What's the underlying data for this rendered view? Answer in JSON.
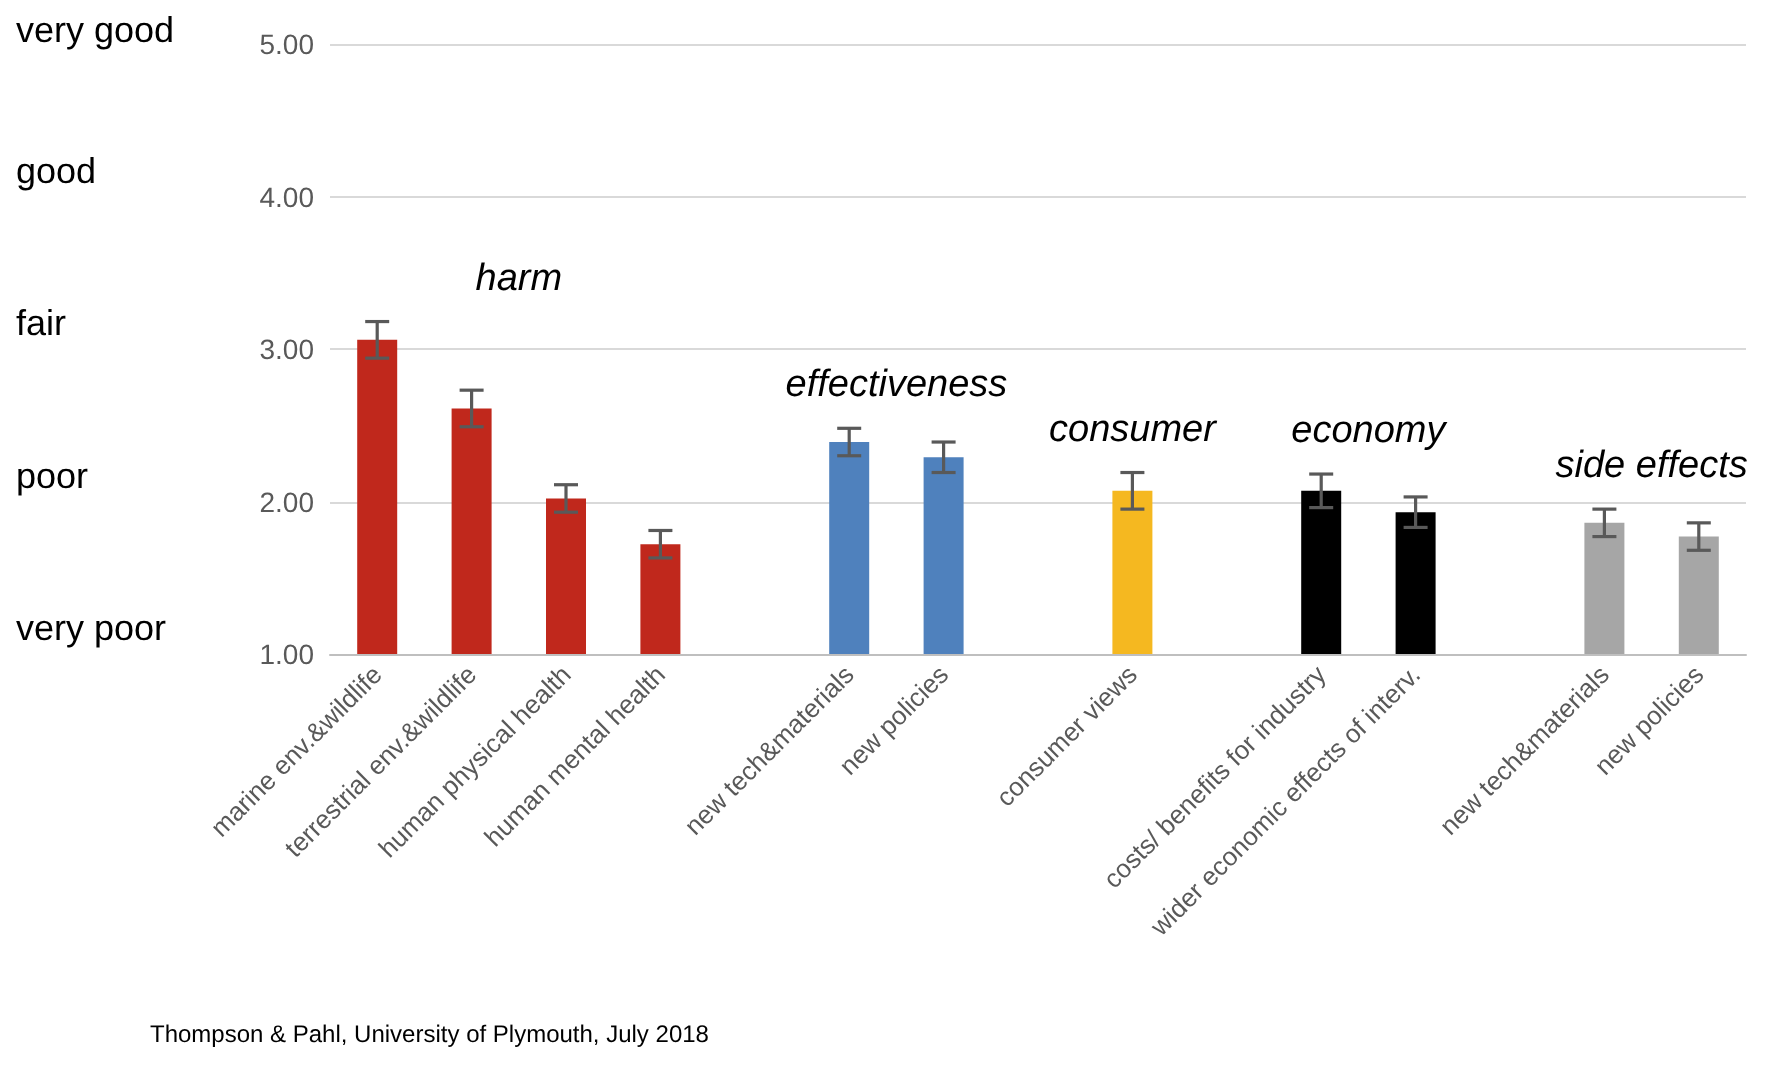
{
  "chart_data": {
    "type": "bar",
    "categories": [
      "marine env.&wildlife",
      "terrestrial env.&wildlife",
      "human physical health",
      "human mental health",
      null,
      "new tech&materials",
      "new policies",
      null,
      "consumer views",
      null,
      "costs/ benefits for industry",
      "wider economic effects of interv.",
      null,
      "new tech&materials",
      "new policies"
    ],
    "values": [
      3.06,
      2.61,
      2.02,
      1.72,
      null,
      2.39,
      2.29,
      null,
      2.07,
      null,
      2.07,
      1.93,
      null,
      1.86,
      1.77
    ],
    "errors": [
      0.12,
      0.12,
      0.09,
      0.09,
      null,
      0.09,
      0.1,
      null,
      0.12,
      null,
      0.11,
      0.1,
      null,
      0.09,
      0.09
    ],
    "colors": [
      "#c0281c",
      "#c0281c",
      "#c0281c",
      "#c0281c",
      null,
      "#4f81bd",
      "#4f81bd",
      null,
      "#f5b820",
      null,
      "#000000",
      "#000000",
      null,
      "#a6a6a6",
      "#a6a6a6"
    ],
    "ylim": [
      1,
      5
    ],
    "yticks": [
      {
        "value": 1,
        "label": "1.00"
      },
      {
        "value": 2,
        "label": "2.00"
      },
      {
        "value": 3,
        "label": "3.00"
      },
      {
        "value": 4,
        "label": "4.00"
      },
      {
        "value": 5,
        "label": "5.00"
      }
    ],
    "grid": "y",
    "annotations": [
      "harm",
      "effectiveness",
      "consumer",
      "economy",
      "side effects",
      "very poor",
      "poor",
      "fair",
      "good",
      "very good",
      "Thompson & Pahl, University of Plymouth, July 2018"
    ]
  }
}
